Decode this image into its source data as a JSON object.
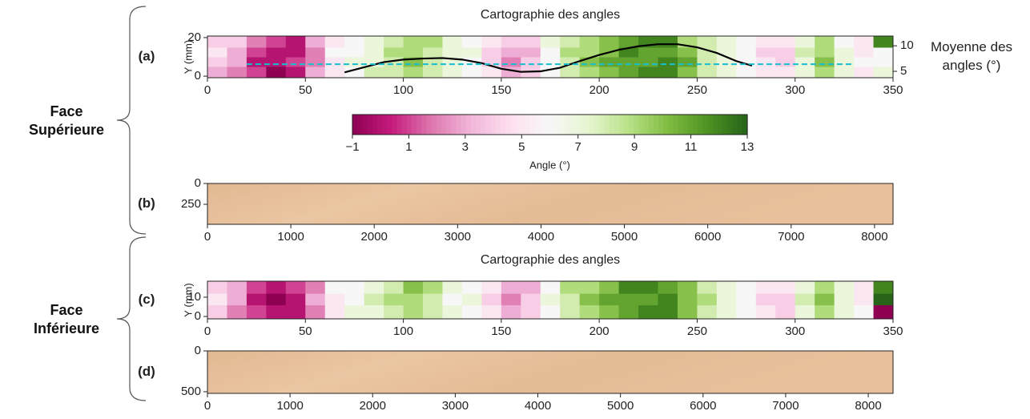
{
  "chart_data": [
    {
      "type": "heatmap",
      "panel_label": "(a)",
      "group": "Face Supérieure",
      "title": "Cartographie des angles",
      "ylabel": "Y (mm)",
      "y2label": "Moyenne des angles (°)",
      "colormap": "PiYG",
      "xlim": [
        0,
        350
      ],
      "xticks": [
        0,
        50,
        100,
        150,
        200,
        250,
        300,
        350
      ],
      "ylim": [
        -0.8,
        20.8
      ],
      "yticks": [
        0,
        20
      ],
      "y2lim": [
        3.75,
        11.9
      ],
      "y2ticks": [
        5,
        10
      ],
      "xbins": [
        0,
        10,
        20,
        30,
        40,
        50,
        60,
        70,
        80,
        90,
        100,
        110,
        120,
        130,
        140,
        150,
        160,
        170,
        180,
        190,
        200,
        210,
        220,
        230,
        240,
        250,
        260,
        270,
        280,
        290,
        300,
        310,
        320,
        330,
        340,
        350
      ],
      "ybins": [
        0,
        5,
        10,
        15,
        20
      ],
      "cells": [
        [
          3,
          2,
          1,
          -1,
          0,
          3,
          5,
          6,
          8,
          8,
          9,
          8,
          7,
          6,
          5,
          3,
          4,
          6,
          8,
          9,
          10,
          11,
          12,
          12,
          10,
          8,
          7,
          6,
          5,
          5,
          7,
          9,
          7,
          5,
          7
        ],
        [
          4,
          3,
          0,
          0,
          1,
          2,
          5,
          7,
          7,
          8,
          10,
          8,
          7,
          6,
          4,
          2,
          4,
          6,
          8,
          10,
          11,
          11,
          11,
          12,
          11,
          8,
          7,
          6,
          5,
          4,
          7,
          10,
          7,
          6,
          6
        ],
        [
          5,
          3,
          1,
          0,
          0,
          2,
          6,
          6,
          7,
          9,
          9,
          8,
          7,
          7,
          4,
          3,
          3,
          6,
          9,
          9,
          10,
          12,
          11,
          11,
          10,
          8,
          7,
          6,
          4,
          4,
          8,
          9,
          7,
          5,
          6
        ],
        [
          4,
          4,
          2,
          1,
          0,
          3,
          5,
          6,
          7,
          8,
          9,
          9,
          7,
          6,
          5,
          4,
          4,
          7,
          8,
          9,
          10,
          11,
          12,
          12,
          9,
          8,
          7,
          6,
          5,
          5,
          7,
          9,
          6,
          5,
          12
        ]
      ],
      "series": [
        {
          "color": "#000000",
          "style": "solid",
          "axis": "y2",
          "x": [
            70,
            80,
            90,
            100,
            110,
            120,
            130,
            140,
            150,
            160,
            170,
            180,
            190,
            200,
            210,
            220,
            230,
            240,
            250,
            260,
            270,
            278
          ],
          "values": [
            4.8,
            5.8,
            6.8,
            7.3,
            7.5,
            7.6,
            7.3,
            6.6,
            5.5,
            4.9,
            5.0,
            5.7,
            7.0,
            8.2,
            9.2,
            9.9,
            10.3,
            10.3,
            9.7,
            8.6,
            7.0,
            6.1
          ]
        },
        {
          "color": "#17becf",
          "style": "dashed",
          "axis": "y2",
          "x": [
            20,
            330
          ],
          "values": [
            6.4,
            6.4
          ]
        }
      ],
      "colorbar": {
        "label": "Angle (°)",
        "lim": [
          -1,
          13
        ],
        "ticks": [
          {
            "value": -1,
            "label": "−1"
          },
          1,
          3,
          5,
          7,
          9,
          11,
          13
        ]
      }
    },
    {
      "type": "image",
      "panel_label": "(b)",
      "y_inverted": true,
      "xlim": [
        0,
        8222
      ],
      "xticks": [
        0,
        1000,
        2000,
        3000,
        4000,
        5000,
        6000,
        7000,
        8000
      ],
      "ylim": [
        0,
        490
      ],
      "yticks": [
        0,
        250
      ]
    },
    {
      "type": "heatmap",
      "panel_label": "(c)",
      "group": "Face Inférieure",
      "title": "Cartographie des angles",
      "ylabel": "Y (mm)",
      "colormap": "PiYG",
      "xlim": [
        0,
        350
      ],
      "xticks": [
        0,
        50,
        100,
        150,
        200,
        250,
        300,
        350
      ],
      "ylim": [
        -1.25,
        18.3
      ],
      "yticks": [
        0,
        10
      ],
      "xbins": [
        0,
        10,
        20,
        30,
        40,
        50,
        60,
        70,
        80,
        90,
        100,
        110,
        120,
        130,
        140,
        150,
        160,
        170,
        180,
        190,
        200,
        210,
        220,
        230,
        240,
        250,
        260,
        270,
        280,
        290,
        300,
        310,
        320,
        330,
        340,
        350
      ],
      "ybins": [
        0,
        6,
        12,
        18
      ],
      "cells": [
        [
          4,
          2,
          1,
          0,
          0,
          2,
          5,
          7,
          7,
          8,
          9,
          8,
          7,
          6,
          5,
          3,
          4,
          6,
          8,
          9,
          10,
          11,
          12,
          12,
          10,
          8,
          7,
          6,
          5,
          4,
          7,
          9,
          7,
          6,
          -1
        ],
        [
          5,
          3,
          0,
          -1,
          0,
          3,
          5,
          6,
          8,
          9,
          9,
          8,
          6,
          7,
          4,
          2,
          4,
          7,
          8,
          10,
          11,
          11,
          11,
          12,
          10,
          9,
          7,
          6,
          4,
          4,
          8,
          10,
          7,
          5,
          13
        ],
        [
          4,
          3,
          1,
          0,
          1,
          2,
          6,
          6,
          7,
          8,
          10,
          9,
          7,
          6,
          5,
          3,
          3,
          6,
          9,
          9,
          10,
          12,
          12,
          11,
          10,
          8,
          7,
          6,
          5,
          5,
          7,
          9,
          7,
          5,
          12
        ]
      ]
    },
    {
      "type": "image",
      "panel_label": "(d)",
      "y_inverted": true,
      "xlim": [
        0,
        8300
      ],
      "xticks": [
        0,
        1000,
        2000,
        3000,
        4000,
        5000,
        6000,
        7000,
        8000
      ],
      "ylim": [
        0,
        520
      ],
      "yticks": [
        0,
        500
      ]
    }
  ]
}
